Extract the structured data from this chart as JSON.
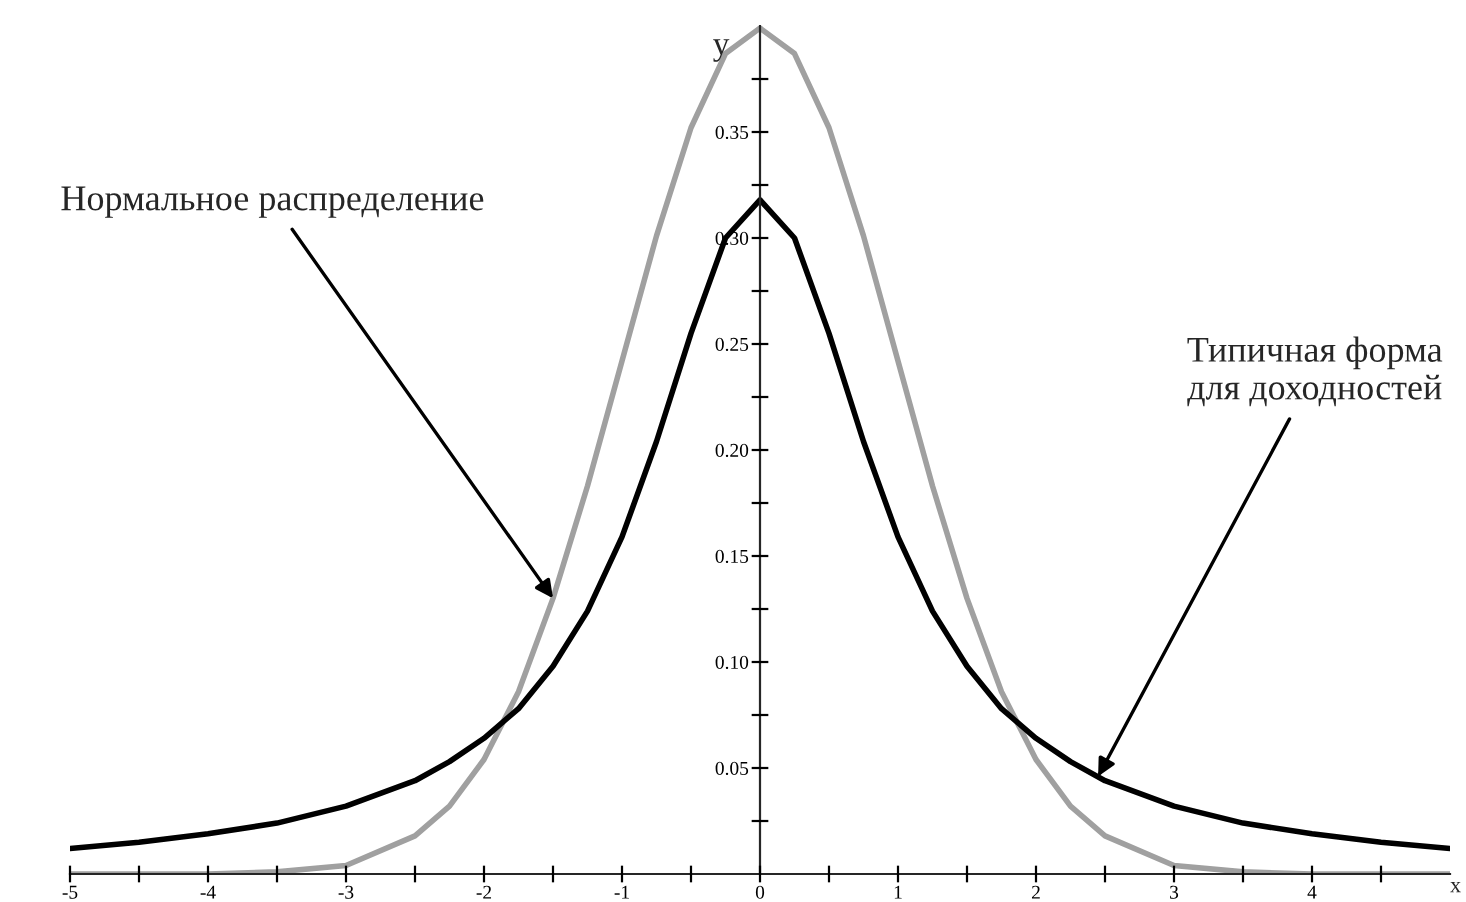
{
  "chart_data": {
    "type": "line",
    "xlabel": "x",
    "ylabel": "y",
    "x": [
      -5,
      -4.5,
      -4,
      -3.5,
      -3,
      -2.5,
      -2.25,
      -2,
      -1.75,
      -1.5,
      -1.25,
      -1,
      -0.75,
      -0.5,
      -0.25,
      0,
      0.25,
      0.5,
      0.75,
      1,
      1.25,
      1.5,
      1.75,
      2,
      2.25,
      2.5,
      3,
      3.5,
      4,
      4.5,
      5
    ],
    "series": [
      {
        "color": "#a0a0a0",
        "values": [
          0.0,
          0.0,
          0.0,
          0.001,
          0.004,
          0.018,
          0.032,
          0.054,
          0.086,
          0.13,
          0.183,
          0.242,
          0.301,
          0.352,
          0.387,
          0.399,
          0.387,
          0.352,
          0.301,
          0.242,
          0.183,
          0.13,
          0.086,
          0.054,
          0.032,
          0.018,
          0.004,
          0.001,
          0.0,
          0.0,
          0.0
        ]
      },
      {
        "color": "#000000",
        "values": [
          0.012,
          0.015,
          0.019,
          0.024,
          0.032,
          0.044,
          0.053,
          0.064,
          0.078,
          0.098,
          0.124,
          0.159,
          0.204,
          0.255,
          0.3,
          0.318,
          0.3,
          0.255,
          0.204,
          0.159,
          0.124,
          0.098,
          0.078,
          0.064,
          0.053,
          0.044,
          0.032,
          0.024,
          0.019,
          0.015,
          0.012
        ]
      }
    ],
    "xlim": [
      -5,
      5
    ],
    "ylim": [
      0,
      0.4
    ],
    "xticks": [
      -5,
      {
        "value": -4.5,
        "label": null
      },
      -4,
      {
        "value": -3.5,
        "label": null
      },
      -3,
      {
        "value": -2.5,
        "label": null
      },
      -2,
      {
        "value": -1.5,
        "label": null
      },
      -1,
      {
        "value": -0.5,
        "label": null
      },
      0,
      {
        "value": 0.5,
        "label": null
      },
      1,
      {
        "value": 1.5,
        "label": null
      },
      2,
      {
        "value": 2.5,
        "label": null
      },
      3,
      {
        "value": 3.5,
        "label": null
      },
      4,
      {
        "value": 4.5,
        "label": null
      }
    ],
    "yticks": [
      {
        "value": 0.025,
        "label": null
      },
      {
        "value": 0.05,
        "label": "0.05"
      },
      {
        "value": 0.075,
        "label": null
      },
      {
        "value": 0.1,
        "label": "0.10"
      },
      {
        "value": 0.125,
        "label": null
      },
      {
        "value": 0.15,
        "label": "0.15"
      },
      {
        "value": 0.175,
        "label": null
      },
      {
        "value": 0.2,
        "label": "0.20"
      },
      {
        "value": 0.225,
        "label": null
      },
      {
        "value": 0.25,
        "label": "0.25"
      },
      {
        "value": 0.275,
        "label": null
      },
      {
        "value": 0.3,
        "label": "0.30"
      },
      {
        "value": 0.325,
        "label": null
      },
      {
        "value": 0.35,
        "label": "0.35"
      },
      {
        "value": 0.375,
        "label": null
      }
    ],
    "grid": false,
    "legend": false,
    "marker": "none",
    "line_style": "solid",
    "annotations": [
      {
        "text": "Нормальное распределение",
        "x": -1.5,
        "y": 0.13
      },
      {
        "text": "Типичная форма\nдля доходностей",
        "x": 2.45,
        "y": 0.046
      }
    ]
  }
}
